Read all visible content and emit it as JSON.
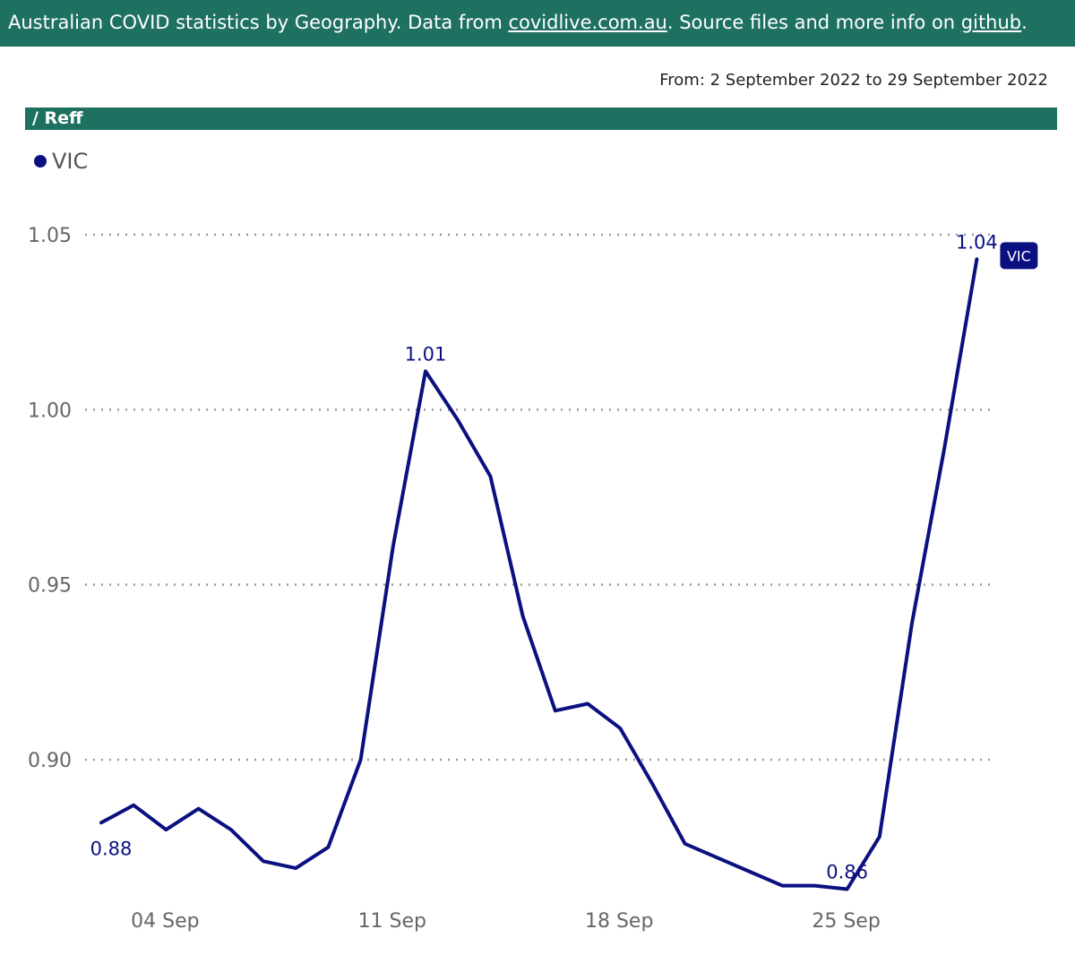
{
  "header": {
    "text_pre": "Australian COVID statistics by Geography. Data from ",
    "link1": "covidlive.com.au",
    "text_mid": ". Source files and more info on ",
    "link2": "github",
    "text_post": "."
  },
  "date_range": "From: 2 September 2022 to 29 September 2022",
  "section_title": "/ Reff",
  "colors": {
    "header_bg": "#1e7061",
    "series": "#0b1080",
    "grid": "#999999"
  },
  "chart_data": {
    "type": "line",
    "title": "",
    "xlabel": "",
    "ylabel": "",
    "ylim": [
      0.865,
      1.05
    ],
    "y_ticks": [
      {
        "value": 0.9,
        "label": "0.90"
      },
      {
        "value": 0.95,
        "label": "0.95"
      },
      {
        "value": 1.0,
        "label": "1.00"
      },
      {
        "value": 1.05,
        "label": "1.05"
      }
    ],
    "x_ticks": [
      {
        "date": "2022-09-04",
        "label": "04 Sep"
      },
      {
        "date": "2022-09-11",
        "label": "11 Sep"
      },
      {
        "date": "2022-09-18",
        "label": "18 Sep"
      },
      {
        "date": "2022-09-25",
        "label": "25 Sep"
      }
    ],
    "x_range": [
      "2022-09-02",
      "2022-09-29"
    ],
    "grid": "horizontal dotted",
    "legend": "top-left",
    "series": [
      {
        "name": "VIC",
        "tag": "VIC",
        "x": [
          "2022-09-02",
          "2022-09-03",
          "2022-09-04",
          "2022-09-05",
          "2022-09-06",
          "2022-09-07",
          "2022-09-08",
          "2022-09-09",
          "2022-09-10",
          "2022-09-11",
          "2022-09-12",
          "2022-09-13",
          "2022-09-14",
          "2022-09-15",
          "2022-09-16",
          "2022-09-17",
          "2022-09-18",
          "2022-09-19",
          "2022-09-20",
          "2022-09-21",
          "2022-09-22",
          "2022-09-23",
          "2022-09-24",
          "2022-09-25",
          "2022-09-26",
          "2022-09-27",
          "2022-09-28",
          "2022-09-29"
        ],
        "values": [
          0.882,
          0.887,
          0.88,
          0.886,
          0.88,
          0.871,
          0.869,
          0.875,
          0.9,
          0.961,
          1.011,
          0.997,
          0.981,
          0.941,
          0.914,
          0.916,
          0.909,
          0.893,
          0.876,
          0.872,
          0.868,
          0.864,
          0.864,
          0.863,
          0.878,
          0.939,
          0.989,
          1.043
        ],
        "labels": [
          {
            "index": 0,
            "text": "0.88",
            "pos": "below"
          },
          {
            "index": 10,
            "text": "1.01",
            "pos": "above"
          },
          {
            "index": 23,
            "text": "0.86",
            "pos": "above"
          },
          {
            "index": 27,
            "text": "1.04",
            "pos": "above"
          }
        ]
      }
    ]
  }
}
